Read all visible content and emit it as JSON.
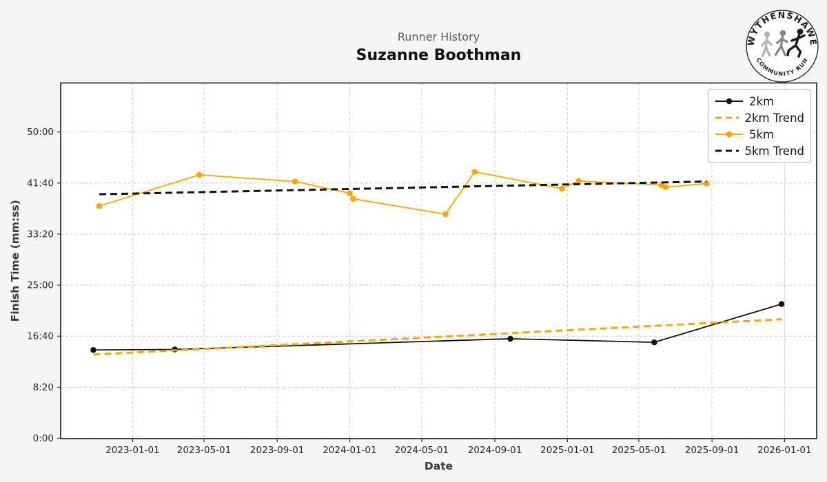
{
  "header": {
    "subtitle": "Runner History",
    "title": "Suzanne Boothman"
  },
  "logo": {
    "top_text": "WYTHENSHAWE",
    "bottom_text": "COMMUNITY RUN"
  },
  "chart_data": {
    "type": "line",
    "title": "Runner History",
    "subtitle": "Suzanne Boothman",
    "xlabel": "Date",
    "ylabel": "Finish Time (mm:ss)",
    "grid": true,
    "legend_position": "upper right",
    "xlim": [
      "2022-09-02",
      "2026-02-24"
    ],
    "ylim_seconds": [
      0,
      3480
    ],
    "x_tick_labels": [
      "2023-01-01",
      "2023-05-01",
      "2023-09-01",
      "2024-01-01",
      "2024-05-01",
      "2024-09-01",
      "2025-01-01",
      "2025-05-01",
      "2025-09-01",
      "2026-01-01"
    ],
    "y_tick_labels": [
      "0:00",
      "8:20",
      "16:40",
      "25:00",
      "33:20",
      "41:40",
      "50:00"
    ],
    "colors": {
      "km2": "#111111",
      "km5": "#FFA500",
      "trend2": "#FFA500",
      "trend5": "#111111",
      "grid": "#cccccc",
      "figure_bg": "#f5f5f5",
      "plot_bg": "#ffffff",
      "tick_text": "#262626",
      "axis_label": "#3a3a3a"
    },
    "series": [
      {
        "name": "2km",
        "style": "solid",
        "marker": true,
        "color_key": "km2",
        "points": [
          {
            "date": "2022-10-27",
            "time": "14:25"
          },
          {
            "date": "2023-03-13",
            "time": "14:30"
          },
          {
            "date": "2024-09-27",
            "time": "16:15"
          },
          {
            "date": "2025-05-27",
            "time": "15:40"
          },
          {
            "date": "2025-12-27",
            "time": "21:55"
          }
        ]
      },
      {
        "name": "2km Trend",
        "style": "dashed",
        "marker": false,
        "color_key": "trend2",
        "points": [
          {
            "date": "2022-10-27",
            "time": "13:40"
          },
          {
            "date": "2025-12-27",
            "time": "19:25"
          }
        ]
      },
      {
        "name": "5km",
        "style": "solid",
        "marker": true,
        "color_key": "km5",
        "points": [
          {
            "date": "2022-11-06",
            "time": "37:55"
          },
          {
            "date": "2023-04-23",
            "time": "43:00"
          },
          {
            "date": "2023-10-01",
            "time": "41:55"
          },
          {
            "date": "2024-01-01",
            "time": "40:00"
          },
          {
            "date": "2024-01-07",
            "time": "39:05"
          },
          {
            "date": "2024-06-10",
            "time": "36:35"
          },
          {
            "date": "2024-07-29",
            "time": "43:30"
          },
          {
            "date": "2024-12-23",
            "time": "40:45"
          },
          {
            "date": "2025-01-20",
            "time": "42:00"
          },
          {
            "date": "2025-06-08",
            "time": "41:20"
          },
          {
            "date": "2025-06-15",
            "time": "41:00"
          },
          {
            "date": "2025-08-23",
            "time": "41:35"
          }
        ]
      },
      {
        "name": "5km Trend",
        "style": "dashed",
        "marker": false,
        "color_key": "trend5",
        "points": [
          {
            "date": "2022-11-06",
            "time": "39:50"
          },
          {
            "date": "2025-08-23",
            "time": "41:55"
          }
        ]
      }
    ],
    "legend": [
      {
        "label": "2km",
        "sample": "solid-dot",
        "color": "#111111"
      },
      {
        "label": "2km Trend",
        "sample": "dashed",
        "color": "#FFA500"
      },
      {
        "label": "5km",
        "sample": "solid-dot",
        "color": "#FFA500"
      },
      {
        "label": "5km Trend",
        "sample": "dashed",
        "color": "#111111"
      }
    ]
  }
}
